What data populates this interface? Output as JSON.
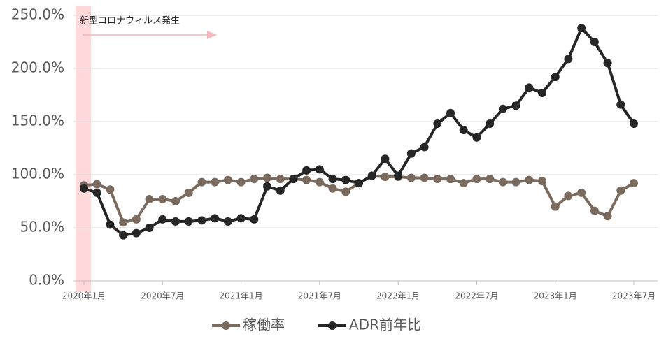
{
  "chart_data": {
    "type": "line",
    "annotation": "新型コロナウィルス発生",
    "categories": [
      "2020年1月",
      null,
      null,
      null,
      null,
      null,
      "2020年7月",
      null,
      null,
      null,
      null,
      null,
      "2021年1月",
      null,
      null,
      null,
      null,
      null,
      "2021年7月",
      null,
      null,
      null,
      null,
      null,
      "2022年1月",
      null,
      null,
      null,
      null,
      null,
      "2022年7月",
      null,
      null,
      null,
      null,
      null,
      "2023年1月",
      null,
      null,
      null,
      null,
      null,
      "2023年7月"
    ],
    "series": [
      {
        "name": "稼働率",
        "color": "#7b6b5e",
        "values": [
          90,
          91,
          86,
          55,
          58,
          77,
          77,
          75,
          83,
          93,
          93,
          95,
          93,
          96,
          97,
          96,
          96,
          95,
          93,
          87,
          84,
          92,
          99,
          98,
          98,
          97,
          97,
          96,
          96,
          92,
          96,
          96,
          93,
          93,
          95,
          94,
          70,
          80,
          83,
          66,
          61,
          85,
          92
        ]
      },
      {
        "name": "ADR前年比",
        "color": "#262626",
        "values": [
          87,
          83,
          53,
          43,
          45,
          50,
          58,
          56,
          56,
          57,
          59,
          56,
          59,
          58,
          89,
          85,
          96,
          104,
          105,
          96,
          95,
          92,
          99,
          115,
          99,
          120,
          126,
          148,
          158,
          142,
          135,
          148,
          162,
          165,
          182,
          177,
          192,
          209,
          238,
          225,
          205,
          166,
          148
        ]
      }
    ],
    "ylim": [
      0,
      250
    ],
    "yticks": [
      {
        "value": 0,
        "label": "0.0%"
      },
      {
        "value": 50,
        "label": "50.0%"
      },
      {
        "value": 100,
        "label": "100.0%"
      },
      {
        "value": 150,
        "label": "150.0%"
      },
      {
        "value": 200,
        "label": "200.0%"
      },
      {
        "value": 250,
        "label": "250.0%"
      }
    ],
    "grid": true,
    "legend": "bottom"
  }
}
